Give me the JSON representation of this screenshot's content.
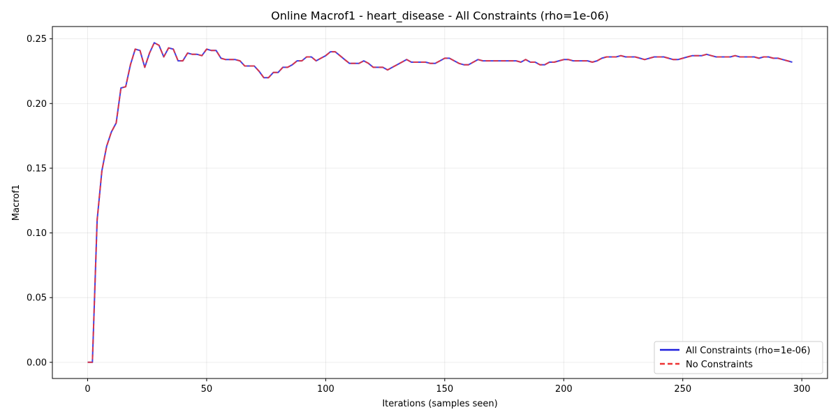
{
  "chart_data": {
    "type": "line",
    "title": "Online Macrof1 - heart_disease - All Constraints (rho=1e-06)",
    "xlabel": "Iterations (samples seen)",
    "ylabel": "Macrof1",
    "xlim": [
      -14.8,
      310.8
    ],
    "ylim": [
      -0.0125,
      0.2595
    ],
    "xticks": [
      0,
      50,
      100,
      150,
      200,
      250,
      300
    ],
    "xtick_labels": [
      "0",
      "50",
      "100",
      "150",
      "200",
      "250",
      "300"
    ],
    "yticks": [
      0.0,
      0.05,
      0.1,
      0.15,
      0.2,
      0.25
    ],
    "ytick_labels": [
      "0.00",
      "0.05",
      "0.10",
      "0.15",
      "0.20",
      "0.25"
    ],
    "grid": true,
    "legend_position": "bottom-right",
    "x": [
      0,
      2,
      4,
      6,
      8,
      10,
      12,
      14,
      16,
      18,
      20,
      22,
      24,
      26,
      28,
      30,
      32,
      34,
      36,
      38,
      40,
      42,
      44,
      46,
      48,
      50,
      52,
      54,
      56,
      58,
      60,
      62,
      64,
      66,
      68,
      70,
      72,
      74,
      76,
      78,
      80,
      82,
      84,
      86,
      88,
      90,
      92,
      94,
      96,
      98,
      100,
      102,
      104,
      106,
      108,
      110,
      112,
      114,
      116,
      118,
      120,
      122,
      124,
      126,
      128,
      130,
      132,
      134,
      136,
      138,
      140,
      142,
      144,
      146,
      148,
      150,
      152,
      154,
      156,
      158,
      160,
      162,
      164,
      166,
      168,
      170,
      172,
      174,
      176,
      178,
      180,
      182,
      184,
      186,
      188,
      190,
      192,
      194,
      196,
      198,
      200,
      202,
      204,
      206,
      208,
      210,
      212,
      214,
      216,
      218,
      220,
      222,
      224,
      226,
      228,
      230,
      232,
      234,
      236,
      238,
      240,
      242,
      244,
      246,
      248,
      250,
      252,
      254,
      256,
      258,
      260,
      262,
      264,
      266,
      268,
      270,
      272,
      274,
      276,
      278,
      280,
      282,
      284,
      286,
      288,
      290,
      292,
      294,
      296
    ],
    "series": [
      {
        "name": "All Constraints (rho=1e-06)",
        "color": "#1f1fdd",
        "style": "solid",
        "values": [
          0.0,
          0.0,
          0.11,
          0.148,
          0.167,
          0.178,
          0.185,
          0.212,
          0.213,
          0.23,
          0.242,
          0.241,
          0.228,
          0.239,
          0.247,
          0.245,
          0.236,
          0.243,
          0.242,
          0.233,
          0.233,
          0.239,
          0.238,
          0.238,
          0.237,
          0.242,
          0.241,
          0.241,
          0.235,
          0.234,
          0.234,
          0.234,
          0.233,
          0.229,
          0.229,
          0.229,
          0.225,
          0.22,
          0.22,
          0.224,
          0.224,
          0.228,
          0.228,
          0.23,
          0.233,
          0.233,
          0.236,
          0.236,
          0.233,
          0.235,
          0.237,
          0.24,
          0.24,
          0.237,
          0.234,
          0.231,
          0.231,
          0.231,
          0.233,
          0.231,
          0.228,
          0.228,
          0.228,
          0.226,
          0.228,
          0.23,
          0.232,
          0.234,
          0.232,
          0.232,
          0.232,
          0.232,
          0.231,
          0.231,
          0.233,
          0.235,
          0.235,
          0.233,
          0.231,
          0.23,
          0.23,
          0.232,
          0.234,
          0.233,
          0.233,
          0.233,
          0.233,
          0.233,
          0.233,
          0.233,
          0.233,
          0.232,
          0.234,
          0.232,
          0.232,
          0.23,
          0.23,
          0.232,
          0.232,
          0.233,
          0.234,
          0.234,
          0.233,
          0.233,
          0.233,
          0.233,
          0.232,
          0.233,
          0.235,
          0.236,
          0.236,
          0.236,
          0.237,
          0.236,
          0.236,
          0.236,
          0.235,
          0.234,
          0.235,
          0.236,
          0.236,
          0.236,
          0.235,
          0.234,
          0.234,
          0.235,
          0.236,
          0.237,
          0.237,
          0.237,
          0.238,
          0.237,
          0.236,
          0.236,
          0.236,
          0.236,
          0.237,
          0.236,
          0.236,
          0.236,
          0.236,
          0.235,
          0.236,
          0.236,
          0.235,
          0.235,
          0.234,
          0.233,
          0.232
        ]
      },
      {
        "name": "No Constraints",
        "color": "#ee3333",
        "style": "dashed",
        "values": [
          0.0,
          0.0,
          0.11,
          0.148,
          0.167,
          0.178,
          0.185,
          0.212,
          0.213,
          0.23,
          0.242,
          0.241,
          0.228,
          0.239,
          0.247,
          0.245,
          0.236,
          0.243,
          0.242,
          0.233,
          0.233,
          0.239,
          0.238,
          0.238,
          0.237,
          0.242,
          0.241,
          0.241,
          0.235,
          0.234,
          0.234,
          0.234,
          0.233,
          0.229,
          0.229,
          0.229,
          0.225,
          0.22,
          0.22,
          0.224,
          0.224,
          0.228,
          0.228,
          0.23,
          0.233,
          0.233,
          0.236,
          0.236,
          0.233,
          0.235,
          0.237,
          0.24,
          0.24,
          0.237,
          0.234,
          0.231,
          0.231,
          0.231,
          0.233,
          0.231,
          0.228,
          0.228,
          0.228,
          0.226,
          0.228,
          0.23,
          0.232,
          0.234,
          0.232,
          0.232,
          0.232,
          0.232,
          0.231,
          0.231,
          0.233,
          0.235,
          0.235,
          0.233,
          0.231,
          0.23,
          0.23,
          0.232,
          0.234,
          0.233,
          0.233,
          0.233,
          0.233,
          0.233,
          0.233,
          0.233,
          0.233,
          0.232,
          0.234,
          0.232,
          0.232,
          0.23,
          0.23,
          0.232,
          0.232,
          0.233,
          0.234,
          0.234,
          0.233,
          0.233,
          0.233,
          0.233,
          0.232,
          0.233,
          0.235,
          0.236,
          0.236,
          0.236,
          0.237,
          0.236,
          0.236,
          0.236,
          0.235,
          0.234,
          0.235,
          0.236,
          0.236,
          0.236,
          0.235,
          0.234,
          0.234,
          0.235,
          0.236,
          0.237,
          0.237,
          0.237,
          0.238,
          0.237,
          0.236,
          0.236,
          0.236,
          0.236,
          0.237,
          0.236,
          0.236,
          0.236,
          0.236,
          0.235,
          0.236,
          0.236,
          0.235,
          0.235,
          0.234,
          0.233,
          0.232
        ]
      }
    ]
  }
}
